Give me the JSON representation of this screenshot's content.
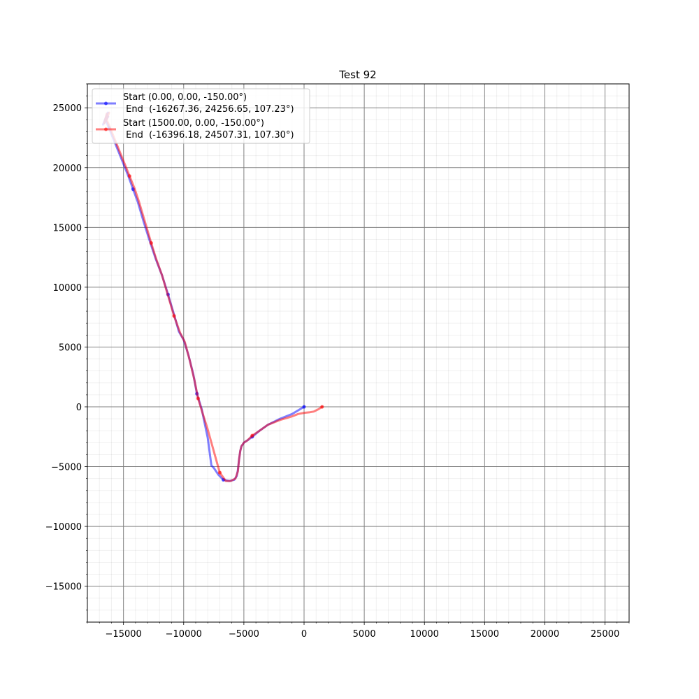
{
  "chart_data": {
    "type": "line",
    "title": "Test 92",
    "xlabel": "",
    "ylabel": "",
    "xlim": [
      -18000,
      27000
    ],
    "ylim": [
      -18000,
      27000
    ],
    "xticks": [
      -15000,
      -10000,
      -5000,
      0,
      5000,
      10000,
      15000,
      20000,
      25000
    ],
    "yticks": [
      -15000,
      -10000,
      -5000,
      0,
      5000,
      10000,
      15000,
      20000,
      25000
    ],
    "xtick_labels": [
      "−15000",
      "−10000",
      "−5000",
      "0",
      "5000",
      "10000",
      "15000",
      "20000",
      "25000"
    ],
    "ytick_labels": [
      "−15000",
      "−10000",
      "−5000",
      "0",
      "5000",
      "10000",
      "15000",
      "20000",
      "25000"
    ],
    "minor_tick_step": 1000,
    "grid": true,
    "legend_position": "top-left",
    "series": [
      {
        "legend_start": "Start (0.00, 0.00, -150.00°)",
        "legend_end": " End  (-16267.36, 24256.65, 107.23°)",
        "color": "#0000ff",
        "x": [
          0,
          -1000,
          -2000,
          -3000,
          -3700,
          -4300,
          -4700,
          -5000,
          -5200,
          -5300,
          -5400,
          -5500,
          -5600,
          -5800,
          -6200,
          -6700,
          -7100,
          -7500,
          -7700,
          -8000,
          -8500,
          -8900,
          -9200,
          -9600,
          -10000,
          -10400,
          -10800,
          -11300,
          -11800,
          -12300,
          -12800,
          -13300,
          -13800,
          -14200,
          -14600,
          -15000,
          -15400,
          -15800,
          -16200,
          -16500,
          -16300,
          -16700,
          -16267
        ],
        "y": [
          0,
          -600,
          -1000,
          -1500,
          -2000,
          -2500,
          -2800,
          -3000,
          -3300,
          -3700,
          -4400,
          -5300,
          -5800,
          -6100,
          -6200,
          -6100,
          -5700,
          -5100,
          -4900,
          -2600,
          -200,
          1100,
          2700,
          4300,
          5600,
          6300,
          7700,
          9400,
          11000,
          12300,
          13800,
          15400,
          17100,
          18200,
          19300,
          20300,
          21300,
          22300,
          23300,
          24000,
          24600,
          23600,
          24257
        ],
        "marker_indices": [
          0,
          5,
          15,
          21,
          27,
          33,
          38
        ]
      },
      {
        "legend_start": "Start (1500.00, 0.00, -150.00°)",
        "legend_end": " End  (-16396.18, 24507.31, 107.30°)",
        "color": "#ff0000",
        "x": [
          1500,
          1200,
          800,
          500,
          0,
          -500,
          -1000,
          -2000,
          -3000,
          -3700,
          -4300,
          -4700,
          -5000,
          -5200,
          -5300,
          -5400,
          -5500,
          -5700,
          -6100,
          -6500,
          -7000,
          -7500,
          -8000,
          -8500,
          -8800,
          -9100,
          -9500,
          -9900,
          -10300,
          -10800,
          -11300,
          -11800,
          -12300,
          -12700,
          -13200,
          -13700,
          -14100,
          -14500,
          -14900,
          -15300,
          -15700,
          -16100,
          -16400,
          -16200,
          -16600,
          -16396
        ],
        "y": [
          0,
          -200,
          -400,
          -450,
          -500,
          -600,
          -800,
          -1100,
          -1500,
          -2000,
          -2400,
          -2800,
          -3000,
          -3300,
          -3700,
          -4400,
          -5400,
          -6000,
          -6200,
          -6200,
          -5500,
          -3700,
          -1900,
          -300,
          700,
          2200,
          3900,
          5400,
          6200,
          7600,
          9300,
          11000,
          12400,
          13700,
          15400,
          17100,
          18300,
          19300,
          20300,
          21300,
          22300,
          23300,
          24000,
          24600,
          23700,
          24507
        ],
        "marker_indices": [
          0,
          10,
          20,
          24,
          29,
          33,
          37
        ]
      }
    ]
  }
}
